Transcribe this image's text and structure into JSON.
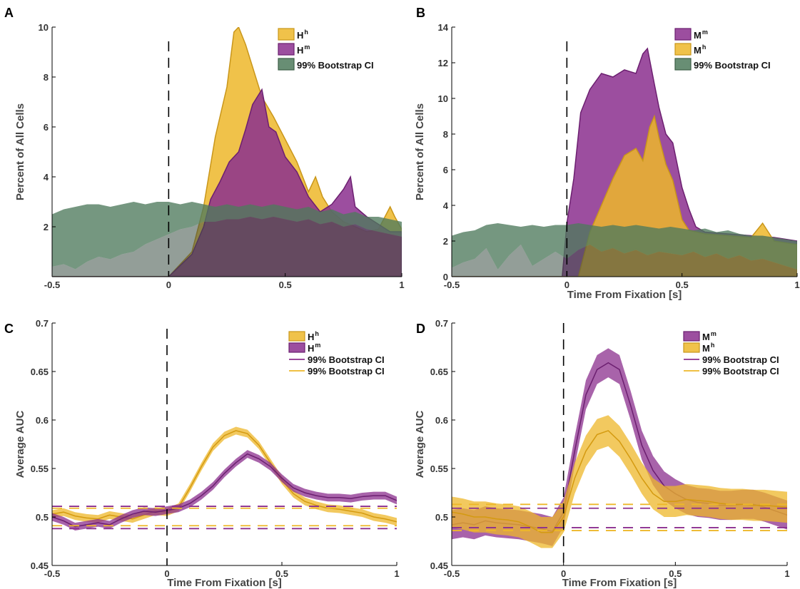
{
  "colors": {
    "yellow": "#EDB72A",
    "purple": "#8B2F8E",
    "green": "#4E7A5C",
    "purple_dark": "#6C1F70"
  },
  "chart_data": [
    {
      "panel": "A",
      "type": "area",
      "xlabel": "",
      "ylabel": "Percent of All Cells",
      "xlim": [
        -0.5,
        1
      ],
      "ylim": [
        0,
        10
      ],
      "xticks": [
        "-0.5",
        "0",
        "0.5",
        "1"
      ],
      "yticks": [
        "2",
        "4",
        "6",
        "8",
        "10"
      ],
      "legend": [
        {
          "base": "H",
          "sup": "h",
          "color": "yellow",
          "kind": "patch"
        },
        {
          "base": "H",
          "sup": "m",
          "color": "purple",
          "kind": "patch"
        },
        {
          "base": "99% Bootstrap CI",
          "sup": "",
          "color": "green",
          "kind": "patch"
        }
      ],
      "series": [
        {
          "name": "Hh",
          "color": "yellow",
          "x": [
            -0.5,
            0,
            0.1,
            0.15,
            0.2,
            0.25,
            0.28,
            0.3,
            0.33,
            0.36,
            0.4,
            0.45,
            0.5,
            0.55,
            0.6,
            0.63,
            0.66,
            0.7,
            0.75,
            0.8,
            0.85,
            0.9,
            0.95,
            0.97,
            1.0
          ],
          "y": [
            0,
            0,
            1.0,
            2.8,
            5.6,
            7.6,
            9.8,
            10.0,
            9.3,
            8.4,
            7.2,
            6.4,
            5.5,
            4.6,
            3.4,
            4.0,
            3.2,
            2.6,
            2.2,
            2.0,
            1.8,
            1.9,
            2.8,
            2.4,
            1.9
          ]
        },
        {
          "name": "Hm",
          "color": "purple",
          "x": [
            -0.5,
            0,
            0.1,
            0.15,
            0.18,
            0.22,
            0.26,
            0.3,
            0.33,
            0.36,
            0.4,
            0.43,
            0.46,
            0.5,
            0.55,
            0.6,
            0.65,
            0.7,
            0.75,
            0.78,
            0.8,
            0.85,
            0.9,
            0.95,
            1.0
          ],
          "y": [
            0,
            0,
            0.9,
            2.0,
            3.1,
            3.8,
            4.6,
            5.0,
            5.9,
            6.9,
            7.5,
            6.0,
            5.8,
            4.8,
            4.2,
            3.2,
            2.6,
            2.9,
            3.5,
            4.0,
            2.8,
            2.4,
            2.1,
            1.8,
            1.8
          ]
        },
        {
          "name": "99% Bootstrap CI",
          "color": "green",
          "x": [
            -0.5,
            -0.45,
            -0.4,
            -0.35,
            -0.3,
            -0.25,
            -0.2,
            -0.15,
            -0.1,
            -0.05,
            0,
            0.05,
            0.1,
            0.15,
            0.2,
            0.25,
            0.3,
            0.35,
            0.4,
            0.45,
            0.5,
            0.55,
            0.6,
            0.65,
            0.7,
            0.75,
            0.8,
            0.85,
            0.9,
            0.95,
            1.0
          ],
          "upper": [
            2.5,
            2.7,
            2.8,
            2.9,
            2.9,
            2.8,
            2.9,
            3.0,
            2.9,
            3.0,
            3.0,
            2.9,
            3.0,
            2.9,
            2.8,
            2.9,
            2.8,
            2.9,
            2.8,
            2.9,
            2.8,
            2.7,
            2.8,
            2.6,
            2.7,
            2.5,
            2.6,
            2.4,
            2.4,
            2.3,
            2.2
          ],
          "lower": [
            0.4,
            0.5,
            0.3,
            0.6,
            0.8,
            0.7,
            0.9,
            1.0,
            1.3,
            1.5,
            1.7,
            1.9,
            2.0,
            2.2,
            2.2,
            2.3,
            2.3,
            2.4,
            2.3,
            2.4,
            2.3,
            2.2,
            2.3,
            2.1,
            2.2,
            2.0,
            2.1,
            1.9,
            1.8,
            1.7,
            1.6
          ]
        }
      ]
    },
    {
      "panel": "B",
      "type": "area",
      "xlabel": "Time From Fixation [s]",
      "ylabel": "Percent of All Cells",
      "xlim": [
        -0.5,
        1
      ],
      "ylim": [
        0,
        14
      ],
      "xticks": [
        "-0.5",
        "0",
        "0.5",
        "1"
      ],
      "yticks": [
        "0",
        "2",
        "4",
        "6",
        "8",
        "10",
        "12",
        "14"
      ],
      "legend": [
        {
          "base": "M",
          "sup": "m",
          "color": "purple",
          "kind": "patch"
        },
        {
          "base": "M",
          "sup": "h",
          "color": "yellow",
          "kind": "patch"
        },
        {
          "base": "99% Bootstrap CI",
          "sup": "",
          "color": "green",
          "kind": "patch"
        }
      ],
      "series": [
        {
          "name": "Mm",
          "color": "purple",
          "x": [
            -0.5,
            -0.02,
            0,
            0.03,
            0.06,
            0.1,
            0.15,
            0.2,
            0.25,
            0.3,
            0.33,
            0.35,
            0.38,
            0.4,
            0.43,
            0.46,
            0.5,
            0.53,
            0.56,
            0.6,
            0.7,
            0.8,
            0.9,
            1.0
          ],
          "y": [
            0,
            0,
            3.0,
            5.5,
            9.2,
            10.5,
            11.4,
            11.2,
            11.6,
            11.4,
            12.5,
            12.8,
            10.8,
            9.5,
            8.0,
            7.5,
            5.0,
            3.8,
            2.8,
            2.5,
            2.4,
            2.3,
            2.2,
            2.0
          ]
        },
        {
          "name": "Mh",
          "color": "yellow",
          "x": [
            -0.5,
            0.05,
            0.1,
            0.15,
            0.2,
            0.25,
            0.3,
            0.33,
            0.36,
            0.38,
            0.4,
            0.43,
            0.46,
            0.5,
            0.53,
            0.6,
            0.7,
            0.8,
            0.85,
            0.88,
            0.9,
            1.0
          ],
          "y": [
            0,
            0,
            2.5,
            4.0,
            5.5,
            6.8,
            7.2,
            6.5,
            8.4,
            9.0,
            7.8,
            6.3,
            5.4,
            3.2,
            2.6,
            2.4,
            2.3,
            2.2,
            3.0,
            2.4,
            2.0,
            1.8
          ]
        },
        {
          "name": "99% Bootstrap CI",
          "color": "green",
          "x": [
            -0.5,
            -0.45,
            -0.4,
            -0.35,
            -0.3,
            -0.25,
            -0.2,
            -0.15,
            -0.1,
            -0.05,
            0,
            0.05,
            0.1,
            0.15,
            0.2,
            0.25,
            0.3,
            0.35,
            0.4,
            0.45,
            0.5,
            0.55,
            0.6,
            0.65,
            0.7,
            0.75,
            0.8,
            0.85,
            0.9,
            0.95,
            1.0
          ],
          "upper": [
            2.3,
            2.5,
            2.6,
            2.9,
            3.0,
            2.9,
            2.8,
            2.9,
            2.8,
            2.9,
            2.9,
            3.0,
            2.9,
            2.8,
            2.9,
            2.8,
            2.9,
            2.8,
            2.7,
            2.8,
            2.7,
            2.6,
            2.7,
            2.5,
            2.6,
            2.4,
            2.3,
            2.3,
            2.2,
            2.1,
            2.0
          ],
          "lower": [
            0.5,
            0.8,
            1.0,
            1.6,
            0.4,
            1.2,
            1.8,
            0.6,
            1.0,
            1.4,
            1.0,
            1.5,
            1.8,
            1.4,
            1.6,
            1.3,
            1.5,
            1.2,
            1.4,
            1.3,
            1.2,
            1.4,
            1.1,
            1.3,
            1.0,
            1.2,
            0.9,
            1.0,
            0.8,
            0.6,
            0.4
          ]
        }
      ]
    },
    {
      "panel": "C",
      "type": "line",
      "xlabel": "Time From Fixation [s]",
      "ylabel": "Average AUC",
      "xlim": [
        -0.5,
        1
      ],
      "ylim": [
        0.45,
        0.7
      ],
      "xticks": [
        "-0.5",
        "0",
        "0.5",
        "1"
      ],
      "yticks": [
        "0.45",
        "0.5",
        "0.55",
        "0.6",
        "0.65",
        "0.7"
      ],
      "legend": [
        {
          "base": "H",
          "sup": "h",
          "color": "yellow",
          "kind": "patch"
        },
        {
          "base": "H",
          "sup": "m",
          "color": "purple",
          "kind": "patch"
        },
        {
          "base": "99% Bootstrap CI",
          "sup": "",
          "color": "purple",
          "kind": "line"
        },
        {
          "base": "99% Bootstrap CI",
          "sup": "",
          "color": "yellow",
          "kind": "line"
        }
      ],
      "series": [
        {
          "name": "Hh",
          "color": "yellow",
          "band": 0.004,
          "x": [
            -0.5,
            -0.45,
            -0.4,
            -0.35,
            -0.3,
            -0.25,
            -0.2,
            -0.15,
            -0.1,
            -0.05,
            0,
            0.05,
            0.1,
            0.15,
            0.2,
            0.25,
            0.3,
            0.35,
            0.4,
            0.45,
            0.5,
            0.55,
            0.6,
            0.65,
            0.7,
            0.75,
            0.8,
            0.85,
            0.9,
            0.95,
            1.0
          ],
          "y": [
            0.503,
            0.505,
            0.501,
            0.499,
            0.498,
            0.502,
            0.5,
            0.498,
            0.502,
            0.506,
            0.505,
            0.51,
            0.53,
            0.552,
            0.572,
            0.584,
            0.589,
            0.586,
            0.574,
            0.556,
            0.538,
            0.524,
            0.516,
            0.512,
            0.509,
            0.508,
            0.506,
            0.504,
            0.5,
            0.498,
            0.495
          ]
        },
        {
          "name": "Hm",
          "color": "purple",
          "band": 0.004,
          "x": [
            -0.5,
            -0.45,
            -0.4,
            -0.35,
            -0.3,
            -0.25,
            -0.2,
            -0.15,
            -0.1,
            -0.05,
            0,
            0.05,
            0.1,
            0.15,
            0.2,
            0.25,
            0.3,
            0.35,
            0.4,
            0.45,
            0.5,
            0.55,
            0.6,
            0.65,
            0.7,
            0.75,
            0.8,
            0.85,
            0.9,
            0.95,
            1.0
          ],
          "y": [
            0.5,
            0.496,
            0.49,
            0.492,
            0.494,
            0.492,
            0.498,
            0.503,
            0.506,
            0.505,
            0.507,
            0.509,
            0.514,
            0.522,
            0.532,
            0.545,
            0.556,
            0.565,
            0.56,
            0.552,
            0.54,
            0.53,
            0.525,
            0.522,
            0.52,
            0.52,
            0.519,
            0.521,
            0.522,
            0.522,
            0.517
          ]
        },
        {
          "name": "CI Hm upper",
          "color": "purple",
          "dashed": true,
          "x": [
            -0.5,
            1.0
          ],
          "y": [
            0.511,
            0.511
          ]
        },
        {
          "name": "CI Hm lower",
          "color": "purple",
          "dashed": true,
          "x": [
            -0.5,
            1.0
          ],
          "y": [
            0.488,
            0.488
          ]
        },
        {
          "name": "CI Hh upper",
          "color": "yellow",
          "dashed": true,
          "x": [
            -0.5,
            1.0
          ],
          "y": [
            0.509,
            0.509
          ]
        },
        {
          "name": "CI Hh lower",
          "color": "yellow",
          "dashed": true,
          "x": [
            -0.5,
            1.0
          ],
          "y": [
            0.491,
            0.491
          ]
        }
      ]
    },
    {
      "panel": "D",
      "type": "line",
      "xlabel": "Time From Fixation [s]",
      "ylabel": "Average AUC",
      "xlim": [
        -0.5,
        1
      ],
      "ylim": [
        0.45,
        0.7
      ],
      "xticks": [
        "-0.5",
        "0",
        "0.5",
        "1"
      ],
      "yticks": [
        "0.45",
        "0.5",
        "0.55",
        "0.6",
        "0.65",
        "0.7"
      ],
      "legend": [
        {
          "base": "M",
          "sup": "m",
          "color": "purple",
          "kind": "patch"
        },
        {
          "base": "M",
          "sup": "h",
          "color": "yellow",
          "kind": "patch"
        },
        {
          "base": "99% Bootstrap CI",
          "sup": "",
          "color": "purple",
          "kind": "line"
        },
        {
          "base": "99% Bootstrap CI",
          "sup": "",
          "color": "yellow",
          "kind": "line"
        }
      ],
      "series": [
        {
          "name": "Mm",
          "color": "purple",
          "band": 0.015,
          "x": [
            -0.5,
            -0.45,
            -0.4,
            -0.35,
            -0.3,
            -0.25,
            -0.2,
            -0.15,
            -0.1,
            -0.05,
            0,
            0.05,
            0.1,
            0.15,
            0.2,
            0.25,
            0.3,
            0.35,
            0.4,
            0.45,
            0.5,
            0.55,
            0.6,
            0.65,
            0.7,
            0.75,
            0.8,
            0.85,
            0.9,
            0.95,
            1.0
          ],
          "y": [
            0.492,
            0.494,
            0.492,
            0.496,
            0.494,
            0.493,
            0.492,
            0.49,
            0.488,
            0.485,
            0.505,
            0.568,
            0.626,
            0.652,
            0.659,
            0.652,
            0.615,
            0.574,
            0.548,
            0.532,
            0.524,
            0.518,
            0.515,
            0.514,
            0.512,
            0.512,
            0.513,
            0.513,
            0.51,
            0.506,
            0.502
          ]
        },
        {
          "name": "Mh",
          "color": "yellow",
          "band": 0.016,
          "x": [
            -0.5,
            -0.45,
            -0.4,
            -0.35,
            -0.3,
            -0.25,
            -0.2,
            -0.15,
            -0.1,
            -0.05,
            0,
            0.05,
            0.1,
            0.15,
            0.2,
            0.25,
            0.3,
            0.35,
            0.4,
            0.45,
            0.5,
            0.55,
            0.6,
            0.65,
            0.7,
            0.75,
            0.8,
            0.85,
            0.9,
            0.95,
            1.0
          ],
          "y": [
            0.505,
            0.503,
            0.5,
            0.5,
            0.498,
            0.497,
            0.495,
            0.49,
            0.484,
            0.484,
            0.5,
            0.54,
            0.568,
            0.585,
            0.589,
            0.578,
            0.56,
            0.54,
            0.524,
            0.516,
            0.516,
            0.518,
            0.517,
            0.516,
            0.514,
            0.513,
            0.513,
            0.512,
            0.512,
            0.511,
            0.51
          ]
        },
        {
          "name": "CI Mm upper",
          "color": "purple",
          "dashed": true,
          "x": [
            -0.5,
            1.0
          ],
          "y": [
            0.509,
            0.509
          ]
        },
        {
          "name": "CI Mm lower",
          "color": "purple",
          "dashed": true,
          "x": [
            -0.5,
            1.0
          ],
          "y": [
            0.489,
            0.489
          ]
        },
        {
          "name": "CI Mh upper",
          "color": "yellow",
          "dashed": true,
          "x": [
            -0.5,
            1.0
          ],
          "y": [
            0.513,
            0.513
          ]
        },
        {
          "name": "CI Mh lower",
          "color": "yellow",
          "dashed": true,
          "x": [
            -0.5,
            1.0
          ],
          "y": [
            0.486,
            0.486
          ]
        }
      ]
    }
  ]
}
